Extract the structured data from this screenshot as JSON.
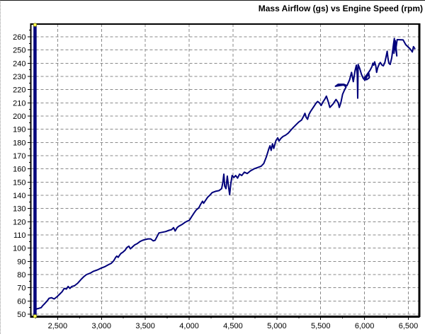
{
  "chart_data": {
    "type": "line",
    "title": "Mass Airflow (gs) vs Engine Speed (rpm)",
    "xlabel": "",
    "ylabel": "",
    "x_range": [
      2194,
      6621
    ],
    "y_range": [
      48.4,
      269.6
    ],
    "x_ticks": [
      {
        "value": 2500,
        "label": "2,500"
      },
      {
        "value": 3000,
        "label": "3,000"
      },
      {
        "value": 3500,
        "label": "3,500"
      },
      {
        "value": 4000,
        "label": "4,000"
      },
      {
        "value": 4500,
        "label": "4,500"
      },
      {
        "value": 5000,
        "label": "5,000"
      },
      {
        "value": 5500,
        "label": "5,500"
      },
      {
        "value": 6000,
        "label": "6,000"
      },
      {
        "value": 6500,
        "label": "6,500"
      }
    ],
    "x_minor_step": 250,
    "y_ticks": [
      {
        "value": 50,
        "label": "50"
      },
      {
        "value": 60,
        "label": "60"
      },
      {
        "value": 70,
        "label": "70"
      },
      {
        "value": 80,
        "label": "80"
      },
      {
        "value": 90,
        "label": "90"
      },
      {
        "value": 100,
        "label": "100"
      },
      {
        "value": 110,
        "label": "110"
      },
      {
        "value": 120,
        "label": "120"
      },
      {
        "value": 130,
        "label": "130"
      },
      {
        "value": 140,
        "label": "140"
      },
      {
        "value": 150,
        "label": "150"
      },
      {
        "value": 160,
        "label": "160"
      },
      {
        "value": 170,
        "label": "170"
      },
      {
        "value": 180,
        "label": "180"
      },
      {
        "value": 190,
        "label": "190"
      },
      {
        "value": 200,
        "label": "200"
      },
      {
        "value": 210,
        "label": "210"
      },
      {
        "value": 220,
        "label": "220"
      },
      {
        "value": 230,
        "label": "230"
      },
      {
        "value": 240,
        "label": "240"
      },
      {
        "value": 250,
        "label": "250"
      },
      {
        "value": 260,
        "label": "260"
      }
    ],
    "y_minor_step": 5,
    "grid": "dashed",
    "legend": "none",
    "colors": {
      "trace": "#00007b",
      "grid": "#8a8a8a",
      "axis": "#000000",
      "marker_fill": "#ffff55",
      "marker_edge": "#808000",
      "background": "#ffffff"
    },
    "start_spike": {
      "rpm": 2242,
      "y_from": 48.5,
      "y_to": 269
    },
    "series": [
      {
        "name": "mass-airflow",
        "points": [
          [
            2242,
            53
          ],
          [
            2262,
            54
          ],
          [
            2290,
            54.5
          ],
          [
            2312,
            55
          ],
          [
            2330,
            56.5
          ],
          [
            2352,
            58
          ],
          [
            2380,
            60
          ],
          [
            2402,
            62
          ],
          [
            2430,
            62.5
          ],
          [
            2460,
            61.5
          ],
          [
            2490,
            63
          ],
          [
            2520,
            65
          ],
          [
            2550,
            67
          ],
          [
            2575,
            69.5
          ],
          [
            2600,
            69
          ],
          [
            2620,
            71
          ],
          [
            2640,
            69.5
          ],
          [
            2662,
            71
          ],
          [
            2692,
            71.5
          ],
          [
            2730,
            73.5
          ],
          [
            2770,
            76.5
          ],
          [
            2800,
            78.5
          ],
          [
            2830,
            80
          ],
          [
            2870,
            81
          ],
          [
            2910,
            82.5
          ],
          [
            2952,
            83.5
          ],
          [
            3000,
            85
          ],
          [
            3040,
            86
          ],
          [
            3080,
            87.5
          ],
          [
            3112,
            88.5
          ],
          [
            3140,
            90.5
          ],
          [
            3162,
            93
          ],
          [
            3175,
            94
          ],
          [
            3190,
            93
          ],
          [
            3205,
            94.5
          ],
          [
            3222,
            96
          ],
          [
            3245,
            97
          ],
          [
            3270,
            98.5
          ],
          [
            3290,
            100.5
          ],
          [
            3312,
            101.5
          ],
          [
            3330,
            99.5
          ],
          [
            3355,
            101
          ],
          [
            3380,
            102.5
          ],
          [
            3410,
            103.5
          ],
          [
            3440,
            105
          ],
          [
            3470,
            106
          ],
          [
            3500,
            106.5
          ],
          [
            3530,
            107
          ],
          [
            3562,
            107
          ],
          [
            3590,
            105.5
          ],
          [
            3612,
            106
          ],
          [
            3635,
            109
          ],
          [
            3655,
            111.5
          ],
          [
            3690,
            112
          ],
          [
            3730,
            112.5
          ],
          [
            3770,
            113.5
          ],
          [
            3800,
            114
          ],
          [
            3822,
            115.5
          ],
          [
            3840,
            113
          ],
          [
            3862,
            115.5
          ],
          [
            3880,
            116.5
          ],
          [
            3920,
            118
          ],
          [
            3952,
            119.5
          ],
          [
            3980,
            120.5
          ],
          [
            4002,
            121
          ],
          [
            4030,
            124
          ],
          [
            4060,
            127
          ],
          [
            4082,
            129
          ],
          [
            4110,
            130.5
          ],
          [
            4130,
            133
          ],
          [
            4152,
            135.5
          ],
          [
            4165,
            134
          ],
          [
            4185,
            136
          ],
          [
            4210,
            138.5
          ],
          [
            4235,
            140
          ],
          [
            4262,
            142
          ],
          [
            4300,
            143
          ],
          [
            4340,
            143.5
          ],
          [
            4370,
            145
          ],
          [
            4385,
            150
          ],
          [
            4395,
            156
          ],
          [
            4405,
            147
          ],
          [
            4420,
            145
          ],
          [
            4435,
            154.5
          ],
          [
            4450,
            146
          ],
          [
            4462,
            140.5
          ],
          [
            4475,
            149
          ],
          [
            4490,
            155
          ],
          [
            4510,
            153.5
          ],
          [
            4530,
            155
          ],
          [
            4552,
            153
          ],
          [
            4575,
            156
          ],
          [
            4600,
            155
          ],
          [
            4630,
            157.5
          ],
          [
            4662,
            156.5
          ],
          [
            4700,
            158.5
          ],
          [
            4740,
            160
          ],
          [
            4780,
            161
          ],
          [
            4820,
            162
          ],
          [
            4850,
            164
          ],
          [
            4880,
            169
          ],
          [
            4910,
            175.5
          ],
          [
            4922,
            177.5
          ],
          [
            4935,
            174
          ],
          [
            4950,
            179
          ],
          [
            4965,
            175.5
          ],
          [
            4990,
            181.5
          ],
          [
            5010,
            183.5
          ],
          [
            5025,
            181
          ],
          [
            5045,
            183
          ],
          [
            5070,
            184.5
          ],
          [
            5100,
            185.5
          ],
          [
            5130,
            187
          ],
          [
            5162,
            189.5
          ],
          [
            5190,
            191.5
          ],
          [
            5220,
            193.5
          ],
          [
            5250,
            195.5
          ],
          [
            5282,
            197
          ],
          [
            5302,
            199.5
          ],
          [
            5320,
            202
          ],
          [
            5335,
            199
          ],
          [
            5350,
            197.5
          ],
          [
            5365,
            201
          ],
          [
            5385,
            203.5
          ],
          [
            5405,
            205.5
          ],
          [
            5425,
            207.5
          ],
          [
            5445,
            209.5
          ],
          [
            5465,
            211
          ],
          [
            5485,
            210
          ],
          [
            5505,
            208
          ],
          [
            5525,
            210.5
          ],
          [
            5545,
            212.5
          ],
          [
            5565,
            215
          ],
          [
            5585,
            211
          ],
          [
            5605,
            206.5
          ],
          [
            5640,
            209
          ],
          [
            5675,
            212.5
          ],
          [
            5700,
            210
          ],
          [
            5712,
            206.5
          ],
          [
            5730,
            210
          ],
          [
            5750,
            216.5
          ],
          [
            5770,
            219.5
          ],
          [
            5790,
            222
          ],
          [
            5762,
            223.5
          ],
          [
            5712,
            223
          ],
          [
            5668,
            222.5
          ],
          [
            5700,
            224
          ],
          [
            5762,
            224
          ],
          [
            5800,
            223
          ],
          [
            5830,
            227.5
          ],
          [
            5852,
            233
          ],
          [
            5872,
            226
          ],
          [
            5892,
            234.5
          ],
          [
            5907,
            238.5
          ],
          [
            5917,
            231
          ],
          [
            5922,
            213.5
          ],
          [
            5927,
            239
          ],
          [
            5945,
            236
          ],
          [
            5965,
            231.5
          ],
          [
            5985,
            228.5
          ],
          [
            6005,
            227
          ],
          [
            6025,
            229.5
          ],
          [
            6048,
            232.5
          ],
          [
            6055,
            229
          ],
          [
            6025,
            227.5
          ],
          [
            6000,
            229
          ],
          [
            6030,
            231.5
          ],
          [
            6062,
            234.5
          ],
          [
            6085,
            237.5
          ],
          [
            6095,
            240
          ],
          [
            6105,
            238.5
          ],
          [
            6115,
            241
          ],
          [
            6128,
            238
          ],
          [
            6138,
            233
          ],
          [
            6150,
            236.5
          ],
          [
            6165,
            239
          ],
          [
            6180,
            240.5
          ],
          [
            6200,
            238.5
          ],
          [
            6215,
            238
          ],
          [
            6232,
            240.5
          ],
          [
            6248,
            245.5
          ],
          [
            6258,
            249
          ],
          [
            6268,
            243.5
          ],
          [
            6278,
            240
          ],
          [
            6292,
            239
          ],
          [
            6310,
            244
          ],
          [
            6322,
            250
          ],
          [
            6332,
            255
          ],
          [
            6340,
            258.7
          ],
          [
            6345,
            252
          ],
          [
            6335,
            247.5
          ],
          [
            6350,
            257
          ],
          [
            6358,
            250
          ],
          [
            6368,
            245.5
          ],
          [
            6360,
            252
          ],
          [
            6372,
            257.8
          ],
          [
            6440,
            257.6
          ],
          [
            6470,
            254
          ],
          [
            6520,
            250.8
          ],
          [
            6545,
            248.5
          ],
          [
            6558,
            252.5
          ],
          [
            6573,
            251
          ]
        ]
      }
    ]
  }
}
